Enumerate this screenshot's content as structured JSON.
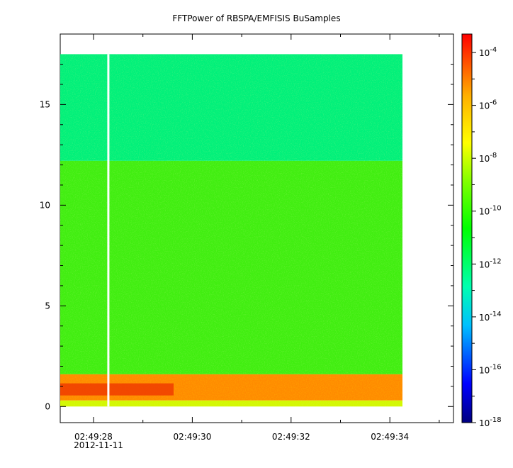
{
  "chart_data": {
    "type": "heatmap",
    "title": "FFTPower of RBSPA/EMFISIS  BuSamples",
    "xlabel": "",
    "ylabel": "",
    "x_ticks": [
      "02:49:28",
      "02:49:30",
      "02:49:32",
      "02:49:34"
    ],
    "x_date_label": "2012-11-11",
    "y_ticks": [
      0,
      5,
      10,
      15
    ],
    "ylim": [
      -0.8,
      18.5
    ],
    "colorbar": {
      "scale": "log",
      "range": [
        "1e-18",
        "5e-4"
      ],
      "tick_exponents": [
        -4,
        -6,
        -8,
        -10,
        -12,
        -14,
        -16,
        -18
      ],
      "tick_base": "10"
    },
    "regions": [
      {
        "y_range": [
          12.2,
          17.5
        ],
        "level": "~1e-12"
      },
      {
        "y_range": [
          1.6,
          12.2
        ],
        "level": "~1e-10"
      },
      {
        "y_range": [
          0.3,
          1.6
        ],
        "level": "~1e-7 to 1e-6"
      },
      {
        "y_range": [
          0,
          0.3
        ],
        "level": "~1e-9"
      }
    ],
    "gap_time": "02:49:28.3",
    "grid": false,
    "colors": {
      "background": "#ffffff",
      "axis": "#000000",
      "gap": "#ffffff"
    }
  }
}
